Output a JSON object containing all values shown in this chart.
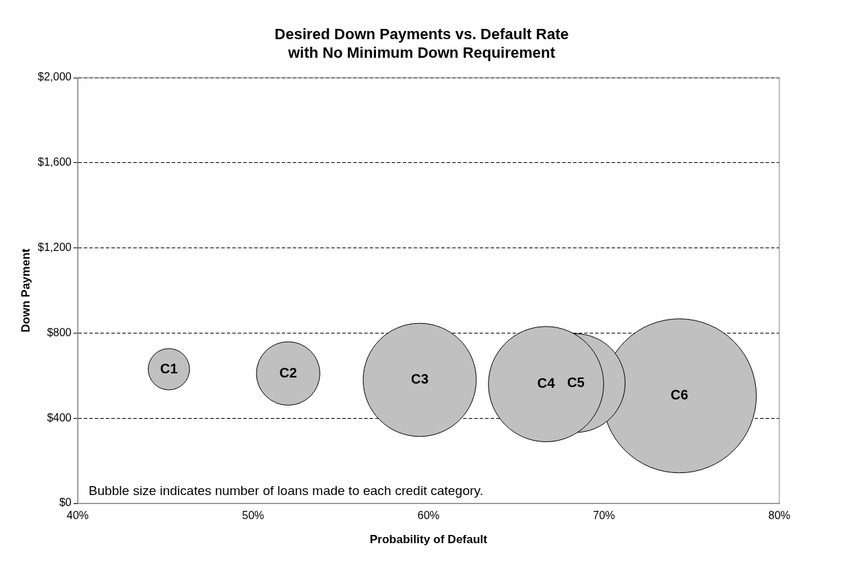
{
  "chart_data": {
    "type": "bubble",
    "title": "Desired Down Payments vs. Default Rate",
    "subtitle": "with No Minimum Down Requirement",
    "xlabel": "Probability of Default",
    "ylabel": "Down Payment",
    "series": [
      {
        "name": "C1",
        "color": "#c0c0c0",
        "x": [
          45.2
        ],
        "values": [
          630
        ],
        "sizes": [
          0.072
        ]
      },
      {
        "name": "C2",
        "color": "#c0c0c0",
        "x": [
          52.0
        ],
        "values": [
          610
        ],
        "sizes": [
          0.17
        ]
      },
      {
        "name": "C3",
        "color": "#c0c0c0",
        "x": [
          59.5
        ],
        "values": [
          580
        ],
        "sizes": [
          0.54
        ]
      },
      {
        "name": "C4",
        "color": "#c0c0c0",
        "x": [
          66.7
        ],
        "values": [
          560
        ],
        "sizes": [
          0.56
        ]
      },
      {
        "name": "C5",
        "color": "#c0c0c0",
        "x": [
          68.4
        ],
        "values": [
          565
        ],
        "sizes": [
          0.41
        ]
      },
      {
        "name": "C6",
        "color": "#c0c0c0",
        "x": [
          74.3
        ],
        "values": [
          505
        ],
        "sizes": [
          1
        ]
      }
    ],
    "xlim": [
      40,
      80
    ],
    "xticks": [
      {
        "value": 40,
        "label": "40%"
      },
      {
        "value": 50,
        "label": "50%"
      },
      {
        "value": 60,
        "label": "60%"
      },
      {
        "value": 70,
        "label": "70%"
      },
      {
        "value": 80,
        "label": "80%"
      }
    ],
    "ylim": [
      0,
      2000
    ],
    "yticks": [
      {
        "value": 0,
        "label": "$0"
      },
      {
        "value": 400,
        "label": "$400"
      },
      {
        "value": 800,
        "label": "$800"
      },
      {
        "value": 1200,
        "label": "$1,200"
      },
      {
        "value": 1600,
        "label": "$1,600"
      },
      {
        "value": 2000,
        "label": "$2,000"
      }
    ],
    "grid": "y",
    "legend": false,
    "annotations": [
      "Bubble size indicates number of loans made to each credit category."
    ]
  }
}
